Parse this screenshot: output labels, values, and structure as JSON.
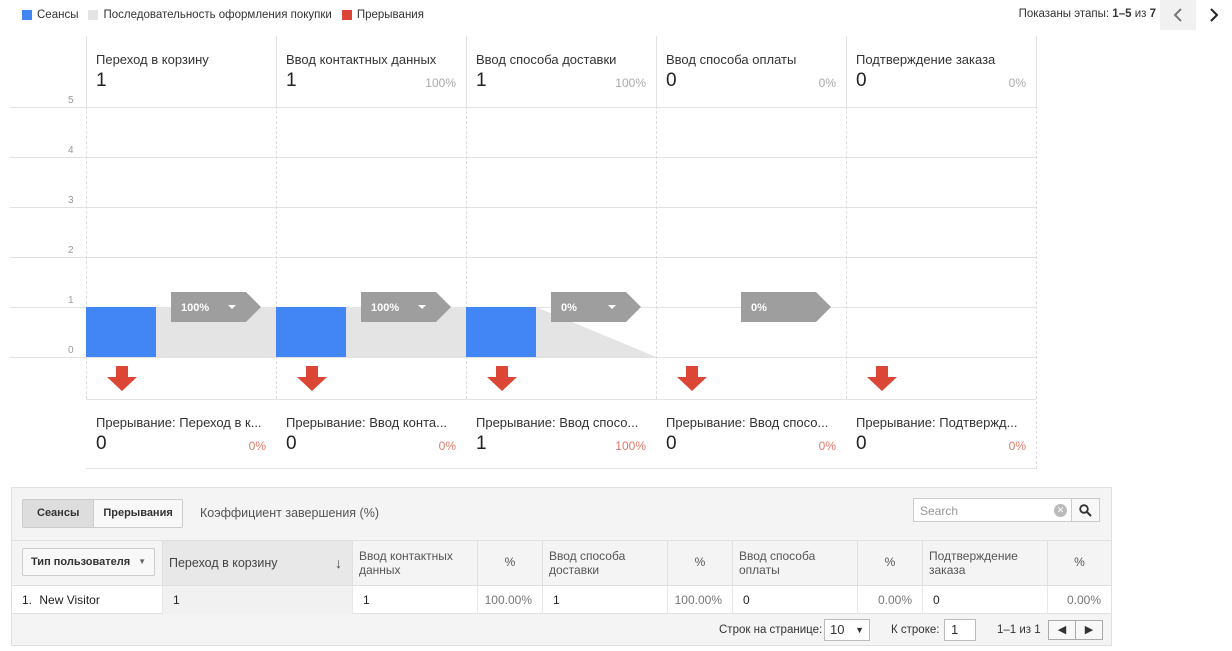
{
  "legend": [
    {
      "label": "Сеансы",
      "color": "#4285f4"
    },
    {
      "label": "Последовательность оформления покупки",
      "color": "#e4e4e4"
    },
    {
      "label": "Прерывания",
      "color": "#dc4637"
    }
  ],
  "stages_shown": {
    "prefix": "Показаны этапы:",
    "range": "1–5",
    "of": "из",
    "total": "7"
  },
  "chart_data": {
    "type": "bar",
    "ylim": [
      0,
      5
    ],
    "yticks": [
      "0",
      "1",
      "2",
      "3",
      "4",
      "5"
    ],
    "stages": [
      {
        "name": "Переход в корзину",
        "value": 1,
        "pct": "",
        "next_pct": "100%",
        "flow_to_next": 1
      },
      {
        "name": "Ввод контактных данных",
        "value": 1,
        "pct": "100%",
        "next_pct": "100%",
        "flow_to_next": 1
      },
      {
        "name": "Ввод способа доставки",
        "value": 1,
        "pct": "100%",
        "next_pct": "0%",
        "flow_to_next": 0
      },
      {
        "name": "Ввод способа оплаты",
        "value": 0,
        "pct": "0%",
        "next_pct": "0%",
        "flow_to_next": 0
      },
      {
        "name": "Подтверждение заказа",
        "value": 0,
        "pct": "0%",
        "next_pct": "",
        "flow_to_next": 0
      }
    ],
    "exits": [
      {
        "name": "Прерывание: Переход в к...",
        "value": "0",
        "pct": "0%"
      },
      {
        "name": "Прерывание: Ввод конта...",
        "value": "0",
        "pct": "0%"
      },
      {
        "name": "Прерывание: Ввод спосо...",
        "value": "1",
        "pct": "100%"
      },
      {
        "name": "Прерывание: Ввод спосо...",
        "value": "0",
        "pct": "0%"
      },
      {
        "name": "Прерывание: Подтвержд...",
        "value": "0",
        "pct": "0%"
      }
    ]
  },
  "table": {
    "segments": [
      "Сеансы",
      "Прерывания"
    ],
    "coef_label": "Коэффициент завершения (%)",
    "search_placeholder": "Search",
    "dimension": "Тип пользователя",
    "headers": [
      "Переход в корзину",
      "Ввод контактных данных",
      "%",
      "Ввод способа доставки",
      "%",
      "Ввод способа оплаты",
      "%",
      "Подтверждение заказа",
      "%"
    ],
    "row": {
      "index": "1.",
      "name": "New Visitor",
      "cells": [
        "1",
        "1",
        "100.00%",
        "1",
        "100.00%",
        "0",
        "0.00%",
        "0",
        "0.00%"
      ]
    },
    "pager": {
      "rows_label": "Строк на странице:",
      "rows_value": "10",
      "goto_label": "К строке:",
      "goto_value": "1",
      "range": "1–1 из 1"
    }
  }
}
